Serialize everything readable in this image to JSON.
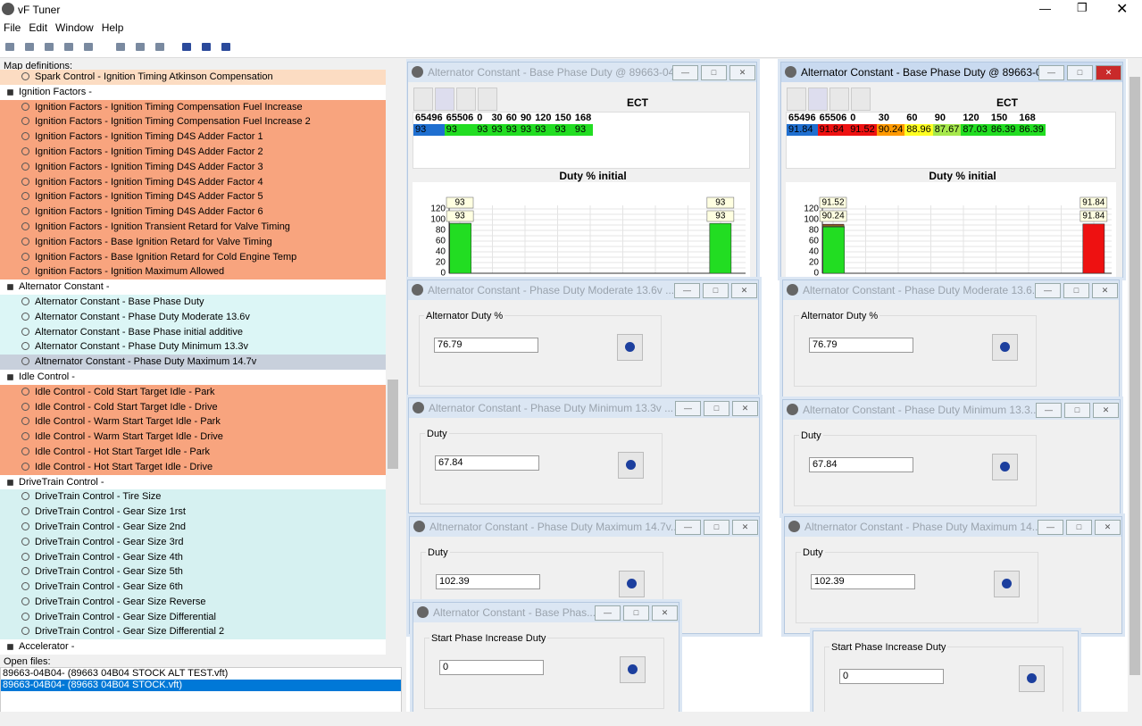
{
  "app_title": "vF Tuner",
  "menu": [
    "File",
    "Edit",
    "Window",
    "Help"
  ],
  "sidebar": {
    "label": "Map definitions:",
    "groups": [
      {
        "color": "#fcdcc2",
        "items": [
          "Spark Control - Ignition Timing Atkinson Compensation"
        ]
      },
      {
        "title": "Ignition Factors -",
        "color": "#f8a47e",
        "items": [
          "Ignition Factors - Ignition Timing Compensation Fuel Increase",
          "Ignition Factors - Ignition Timing Compensation Fuel Increase 2",
          "Ignition Factors - Ignition Timing D4S Adder Factor 1",
          "Ignition Factors - Ignition Timing D4S Adder Factor 2",
          "Ignition Factors - Ignition Timing D4S Adder Factor 3",
          "Ignition Factors - Ignition Timing D4S Adder Factor 4",
          "Ignition Factors - Ignition Timing D4S Adder Factor 5",
          "Ignition Factors - Ignition Timing D4S Adder Factor 6",
          "Ignition Factors - Ignition Transient Retard for Valve Timing",
          "Ignition Factors - Base Ignition Retard for Valve Timing",
          "Ignition Factors - Base Ignition Retard for Cold Engine Temp",
          "Ignition Factors - Ignition Maximum Allowed"
        ]
      },
      {
        "title": "Alternator Constant -",
        "color": "#dcf6f6",
        "items": [
          "Alternator Constant - Base Phase Duty",
          "Alternator Constant - Phase Duty Moderate 13.6v",
          "Alternator Constant - Base Phase initial additive",
          "Alternator Constant - Phase Duty Minimum 13.3v",
          "Altnernator Constant - Phase Duty Maximum 14.7v"
        ]
      },
      {
        "title": "Idle Control -",
        "color": "#f8a47e",
        "items": [
          "Idle Control - Cold Start Target Idle - Park",
          "Idle Control - Cold Start Target Idle - Drive",
          "Idle Control - Warm Start Target Idle - Park",
          "Idle Control - Warm Start Target Idle - Drive",
          "Idle Control - Hot Start Target Idle - Park",
          "Idle Control - Hot Start Target Idle - Drive"
        ]
      },
      {
        "title": "DriveTrain Control -",
        "color": "#d6f1f1",
        "items": [
          "DriveTrain Control - Tire Size",
          "DriveTrain Control - Gear Size 1rst",
          "DriveTrain Control - Gear Size 2nd",
          "DriveTrain Control - Gear Size 3rd",
          "DriveTrain Control - Gear Size 4th",
          "DriveTrain Control - Gear Size 5th",
          "DriveTrain Control - Gear Size 6th",
          "DriveTrain Control - Gear Size Reverse",
          "DriveTrain Control - Gear Size Differential",
          "DriveTrain Control - Gear Size Differential 2"
        ]
      },
      {
        "title": "Accelerator -",
        "items": []
      }
    ]
  },
  "open_files": {
    "label": "Open files:",
    "files": [
      "89663-04B04- (89663 04B04 STOCK ALT TEST.vft)",
      "89663-04B04- (89663 04B04 STOCK.vft)"
    ]
  },
  "windows": [
    {
      "title": "Alternator Constant - Base Phase Duty @ 89663-04...",
      "table": {
        "label": "ECT",
        "x": [
          65496,
          65506,
          0,
          30,
          60,
          90,
          120,
          150,
          168
        ],
        "values": [
          93,
          93,
          93,
          93,
          93,
          93,
          93,
          93,
          93
        ],
        "colors": [
          "#1f6fd0",
          "#22dd22",
          "#22dd22",
          "#22dd22",
          "#22dd22",
          "#22dd22",
          "#22dd22",
          "#22dd22",
          "#22dd22"
        ]
      },
      "chart": {
        "title": "Duty % initial",
        "xlim": [
          0,
          65536
        ],
        "ylim": [
          0,
          120
        ],
        "xticks": [
          0,
          8192,
          16384,
          24576,
          32768,
          40960,
          49152,
          57344,
          65536
        ],
        "yticks": [
          0,
          10,
          20,
          30,
          40,
          50,
          60,
          70,
          80,
          90,
          100,
          110,
          120
        ],
        "ytick_labels": [
          0,
          20,
          40,
          60,
          80,
          100,
          120
        ]
      }
    },
    {
      "title": "Alternator Constant - Base Phase Duty @ 89663-0...",
      "active": true,
      "table": {
        "label": "ECT",
        "x": [
          65496,
          65506,
          0,
          30,
          60,
          90,
          120,
          150,
          168
        ],
        "values": [
          91.84,
          91.84,
          91.52,
          90.24,
          88.96,
          87.67,
          87.03,
          86.39,
          86.39
        ],
        "colors": [
          "#1f6fd0",
          "#ee1111",
          "#ee1111",
          "#ff9900",
          "#ffff22",
          "#a6e84c",
          "#22dd22",
          "#22dd22",
          "#22dd22"
        ]
      },
      "chart": {
        "title": "Duty % initial",
        "xlim": [
          0,
          65536
        ],
        "ylim": [
          0,
          120
        ],
        "xticks": [
          0,
          8192,
          16384,
          24576,
          32768,
          40960,
          49152,
          57344,
          65536
        ],
        "yticks": [
          0,
          10,
          20,
          30,
          40,
          50,
          60,
          70,
          80,
          90,
          100,
          110,
          120
        ],
        "ytick_labels": [
          0,
          20,
          40,
          60,
          80,
          100,
          120
        ]
      }
    },
    {
      "title": "Alternator Constant - Phase Duty Moderate 13.6v ...",
      "label": "Alternator Duty %",
      "value": "76.79"
    },
    {
      "title": "Alternator Constant - Phase Duty Moderate 13.6...",
      "label": "Alternator Duty %",
      "value": "76.79"
    },
    {
      "title": "Alternator Constant - Phase Duty Minimum 13.3v ...",
      "label": "Duty",
      "value": "67.84"
    },
    {
      "title": "Alternator Constant - Phase Duty Minimum 13.3...",
      "label": "Duty",
      "value": "67.84"
    },
    {
      "title": "Altnernator Constant - Phase Duty Maximum 14.7v...",
      "label": "Duty",
      "value": "102.39"
    },
    {
      "title": "Altnernator Constant - Phase Duty Maximum 14...",
      "label": "Duty",
      "value": "102.39"
    },
    {
      "label": "Start Phase Increase Duty",
      "value": "0"
    },
    {
      "title": "Alternator Constant - Base Phas...",
      "label": "Start Phase Increase Duty",
      "value": "0"
    }
  ]
}
